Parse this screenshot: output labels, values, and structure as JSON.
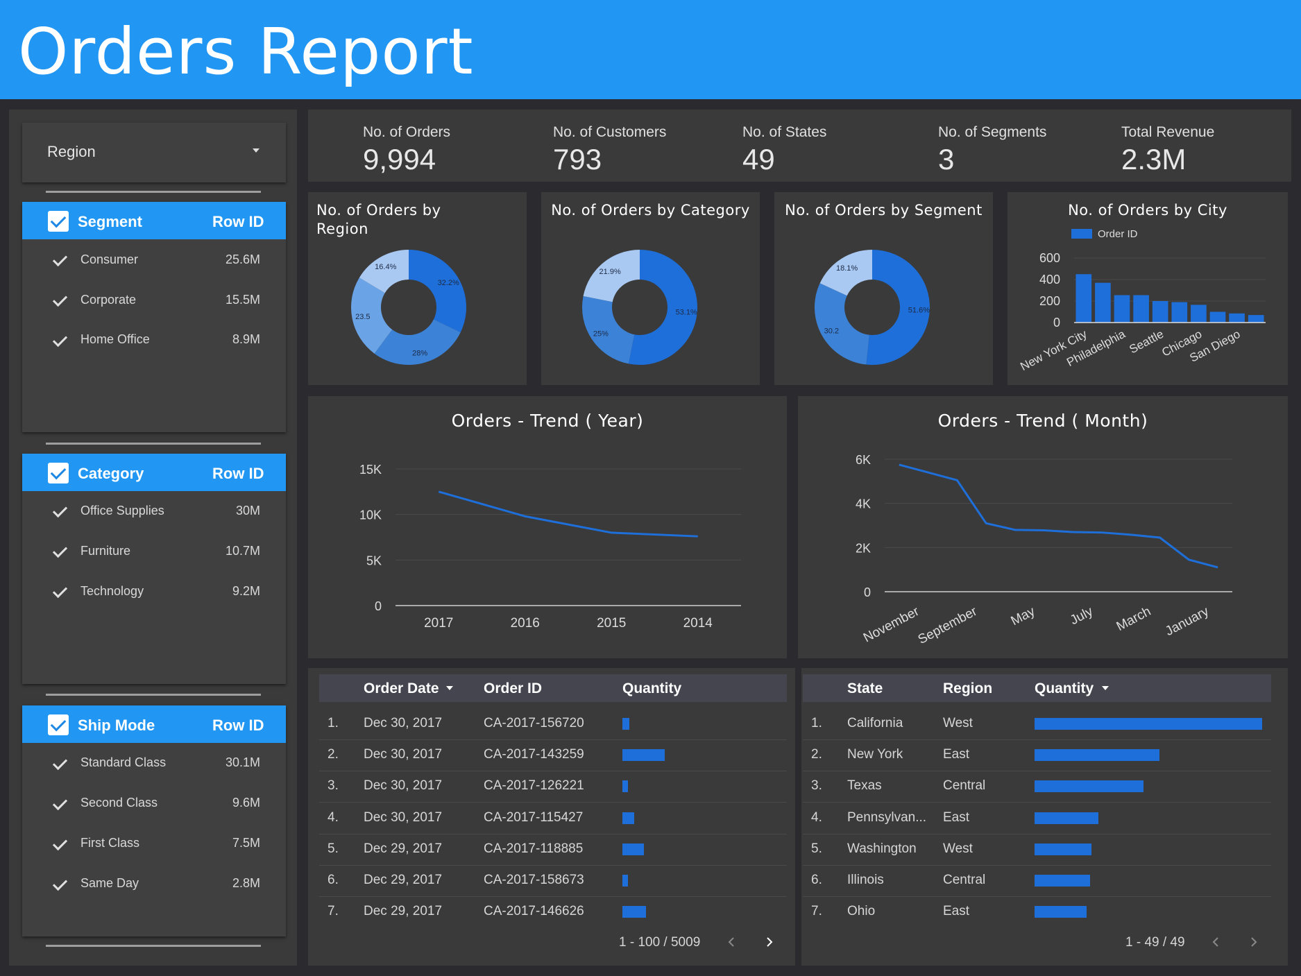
{
  "header": {
    "title": "Orders Report"
  },
  "sidebar": {
    "dropdown": {
      "label": "Region"
    },
    "filters": [
      {
        "title": "Segment",
        "metric": "Row ID",
        "items": [
          {
            "label": "Consumer",
            "value": "25.6M"
          },
          {
            "label": "Corporate",
            "value": "15.5M"
          },
          {
            "label": "Home Office",
            "value": "8.9M"
          }
        ]
      },
      {
        "title": "Category",
        "metric": "Row ID",
        "items": [
          {
            "label": "Office Supplies",
            "value": "30M"
          },
          {
            "label": "Furniture",
            "value": "10.7M"
          },
          {
            "label": "Technology",
            "value": "9.2M"
          }
        ]
      },
      {
        "title": "Ship Mode",
        "metric": "Row ID",
        "items": [
          {
            "label": "Standard Class",
            "value": "30.1M"
          },
          {
            "label": "Second Class",
            "value": "9.6M"
          },
          {
            "label": "First Class",
            "value": "7.5M"
          },
          {
            "label": "Same Day",
            "value": "2.8M"
          }
        ]
      }
    ]
  },
  "kpis": [
    {
      "label": "No. of Orders",
      "value": "9,994"
    },
    {
      "label": "No. of Customers",
      "value": "793"
    },
    {
      "label": "No. of States",
      "value": "49"
    },
    {
      "label": "No. of Segments",
      "value": "3"
    },
    {
      "label": "Total Revenue",
      "value": "2.3M"
    }
  ],
  "colors": {
    "primary": "#2196f3",
    "series": "#1e6fd9",
    "donut": [
      "#1e6fd9",
      "#3c82d6",
      "#6aa3e6",
      "#a9c9f2"
    ]
  },
  "chart_data": [
    {
      "type": "pie",
      "title": "No.  of Orders by Region",
      "slices": [
        {
          "value": 32.2,
          "label": "32.2%"
        },
        {
          "value": 28,
          "label": "28%"
        },
        {
          "value": 23.5,
          "label": "23.5"
        },
        {
          "value": 16.4,
          "label": "16.4%"
        }
      ]
    },
    {
      "type": "pie",
      "title": "No.  of Orders by Category",
      "slices": [
        {
          "value": 53.1,
          "label": "53.1%"
        },
        {
          "value": 25,
          "label": "25%"
        },
        {
          "value": 21.9,
          "label": "21.9%"
        }
      ]
    },
    {
      "type": "pie",
      "title": "No.  of Orders by Segment",
      "slices": [
        {
          "value": 51.6,
          "label": "51.6%"
        },
        {
          "value": 30.2,
          "label": "30.2"
        },
        {
          "value": 18.1,
          "label": "18.1%"
        }
      ]
    },
    {
      "type": "bar",
      "title": "No.  of Orders by City",
      "legend": "Order ID",
      "grid": true,
      "categories": [
        "New York City",
        "",
        "Philadelphia",
        "",
        "Seattle",
        "",
        "Chicago",
        "",
        "San Diego",
        ""
      ],
      "values": [
        450,
        370,
        255,
        255,
        200,
        190,
        165,
        100,
        85,
        70
      ],
      "ylim": [
        0,
        600
      ],
      "yticks": [
        "0",
        "200",
        "400",
        "600"
      ]
    },
    {
      "type": "line",
      "title": "Orders - Trend ( Year)",
      "categories": [
        "2017",
        "2016",
        "2015",
        "2014"
      ],
      "values": [
        12500,
        9800,
        8000,
        7600
      ],
      "ylim": [
        0,
        15000
      ],
      "yticks": [
        "0",
        "5K",
        "10K",
        "15K"
      ]
    },
    {
      "type": "line",
      "title": "Orders - Trend ( Month)",
      "categories": [
        "November",
        "",
        "September",
        "",
        "May",
        "",
        "July",
        "",
        "March",
        "",
        "January",
        ""
      ],
      "values": [
        5750,
        5400,
        5050,
        3100,
        2800,
        2780,
        2700,
        2680,
        2580,
        2450,
        1450,
        1100
      ],
      "ylim": [
        0,
        6000
      ],
      "yticks": [
        "0",
        "2K",
        "4K",
        "6K"
      ]
    }
  ],
  "orders_table": {
    "columns": [
      "Order Date",
      "Order ID",
      "Quantity"
    ],
    "rows": [
      {
        "num": "1.",
        "date": "Dec 30, 2017",
        "id": "CA-2017-156720",
        "qty": 0.03
      },
      {
        "num": "2.",
        "date": "Dec 30, 2017",
        "id": "CA-2017-143259",
        "qty": 0.18
      },
      {
        "num": "3.",
        "date": "Dec 30, 2017",
        "id": "CA-2017-126221",
        "qty": 0.02
      },
      {
        "num": "4.",
        "date": "Dec 30, 2017",
        "id": "CA-2017-115427",
        "qty": 0.05
      },
      {
        "num": "5.",
        "date": "Dec 29, 2017",
        "id": "CA-2017-118885",
        "qty": 0.09
      },
      {
        "num": "6.",
        "date": "Dec 29, 2017",
        "id": "CA-2017-158673",
        "qty": 0.02
      },
      {
        "num": "7.",
        "date": "Dec 29, 2017",
        "id": "CA-2017-146626",
        "qty": 0.1
      }
    ],
    "pager": "1 - 100 / 5009"
  },
  "states_table": {
    "columns": [
      "State",
      "Region",
      "Quantity"
    ],
    "rows": [
      {
        "num": "1.",
        "state": "California",
        "region": "West",
        "qty": 1.0
      },
      {
        "num": "2.",
        "state": "New York",
        "region": "East",
        "qty": 0.55
      },
      {
        "num": "3.",
        "state": "Texas",
        "region": "Central",
        "qty": 0.48
      },
      {
        "num": "4.",
        "state": "Pennsylvan...",
        "region": "East",
        "qty": 0.28
      },
      {
        "num": "5.",
        "state": "Washington",
        "region": "West",
        "qty": 0.25
      },
      {
        "num": "6.",
        "state": "Illinois",
        "region": "Central",
        "qty": 0.245
      },
      {
        "num": "7.",
        "state": "Ohio",
        "region": "East",
        "qty": 0.23
      }
    ],
    "pager": "1 - 49 / 49"
  }
}
